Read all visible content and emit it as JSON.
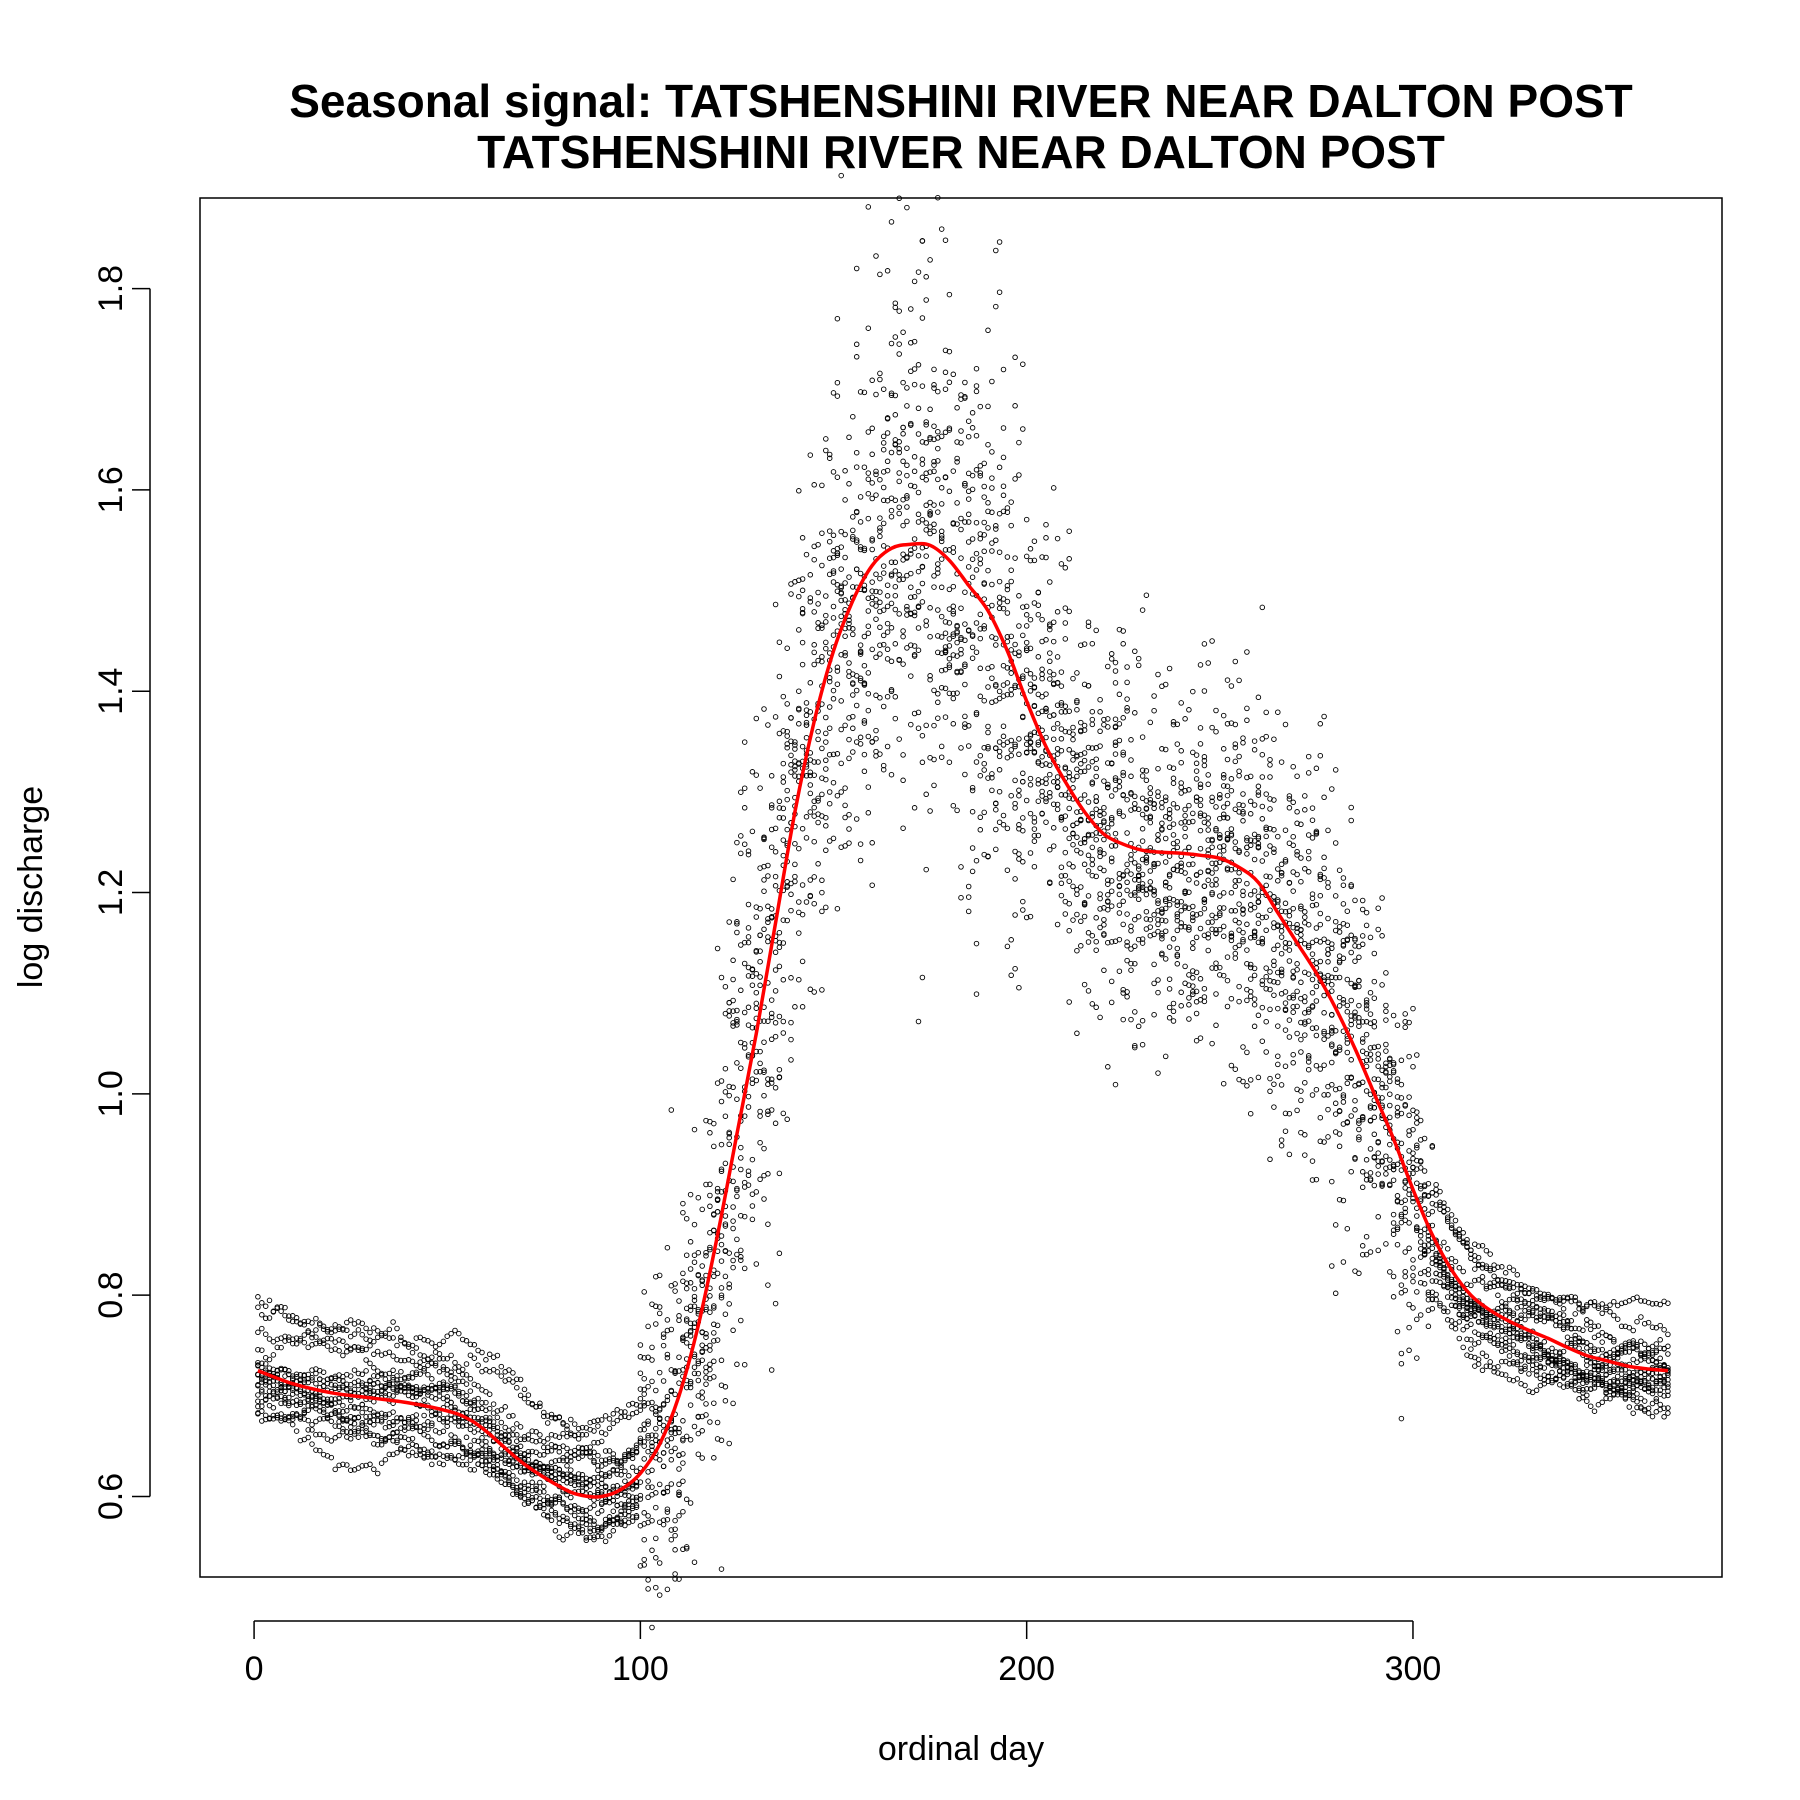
{
  "chart_data": {
    "type": "scatter",
    "title": "Seasonal signal: TATSHENSHINI RIVER NEAR DALTON POST",
    "subtitle": "TATSHENSHINI RIVER NEAR DALTON POST",
    "xlabel": "ordinal day",
    "ylabel": "log discharge",
    "xlim": [
      -14,
      380
    ],
    "ylim": [
      0.52,
      1.89
    ],
    "x_ticks": [
      "0",
      "100",
      "200",
      "300"
    ],
    "y_ticks": [
      "0.6",
      "0.8",
      "1.0",
      "1.2",
      "1.4",
      "1.6",
      "1.8"
    ],
    "grid": false,
    "legend": "none",
    "colors": {
      "points": "#000000",
      "smooth": "#ff0000",
      "frame": "#000000"
    },
    "series": [
      {
        "kind": "points",
        "description_of_values": "daily log discharge observations across many years (approx. 17 years x 366 days)",
        "sample_x": [
          1,
          20,
          40,
          60,
          80,
          90,
          100,
          110,
          120,
          130,
          140,
          150,
          160,
          170,
          175,
          180,
          190,
          200,
          210,
          220,
          230,
          240,
          250,
          260,
          270,
          280,
          290,
          300,
          310,
          320,
          330,
          340,
          350,
          366
        ],
        "sample_y": [
          0.74,
          0.72,
          0.69,
          0.67,
          0.64,
          0.62,
          0.64,
          0.75,
          0.92,
          1.12,
          1.38,
          1.52,
          1.58,
          1.55,
          1.53,
          1.48,
          1.44,
          1.38,
          1.32,
          1.28,
          1.26,
          1.24,
          1.21,
          1.18,
          1.12,
          1.06,
          0.99,
          0.93,
          0.85,
          0.8,
          0.78,
          0.77,
          0.76,
          0.74
        ]
      },
      {
        "kind": "smooth",
        "x": [
          1,
          10,
          20,
          30,
          40,
          50,
          55,
          60,
          70,
          80,
          85,
          90,
          95,
          100,
          105,
          110,
          115,
          120,
          125,
          130,
          135,
          140,
          145,
          150,
          155,
          160,
          165,
          170,
          175,
          180,
          185,
          190,
          195,
          200,
          205,
          210,
          215,
          220,
          225,
          230,
          235,
          240,
          245,
          250,
          255,
          260,
          265,
          270,
          275,
          280,
          285,
          290,
          295,
          300,
          305,
          310,
          315,
          320,
          325,
          330,
          335,
          340,
          345,
          350,
          355,
          360,
          366
        ],
        "y": [
          0.725,
          0.712,
          0.703,
          0.698,
          0.693,
          0.685,
          0.678,
          0.665,
          0.632,
          0.608,
          0.601,
          0.6,
          0.607,
          0.623,
          0.652,
          0.7,
          0.77,
          0.86,
          0.96,
          1.06,
          1.17,
          1.28,
          1.37,
          1.44,
          1.49,
          1.525,
          1.542,
          1.546,
          1.545,
          1.53,
          1.505,
          1.48,
          1.44,
          1.39,
          1.345,
          1.31,
          1.28,
          1.258,
          1.248,
          1.242,
          1.24,
          1.239,
          1.237,
          1.234,
          1.225,
          1.21,
          1.18,
          1.15,
          1.12,
          1.085,
          1.045,
          1.0,
          0.955,
          0.905,
          0.86,
          0.825,
          0.8,
          0.785,
          0.774,
          0.765,
          0.757,
          0.748,
          0.74,
          0.735,
          0.73,
          0.727,
          0.725
        ]
      }
    ]
  }
}
